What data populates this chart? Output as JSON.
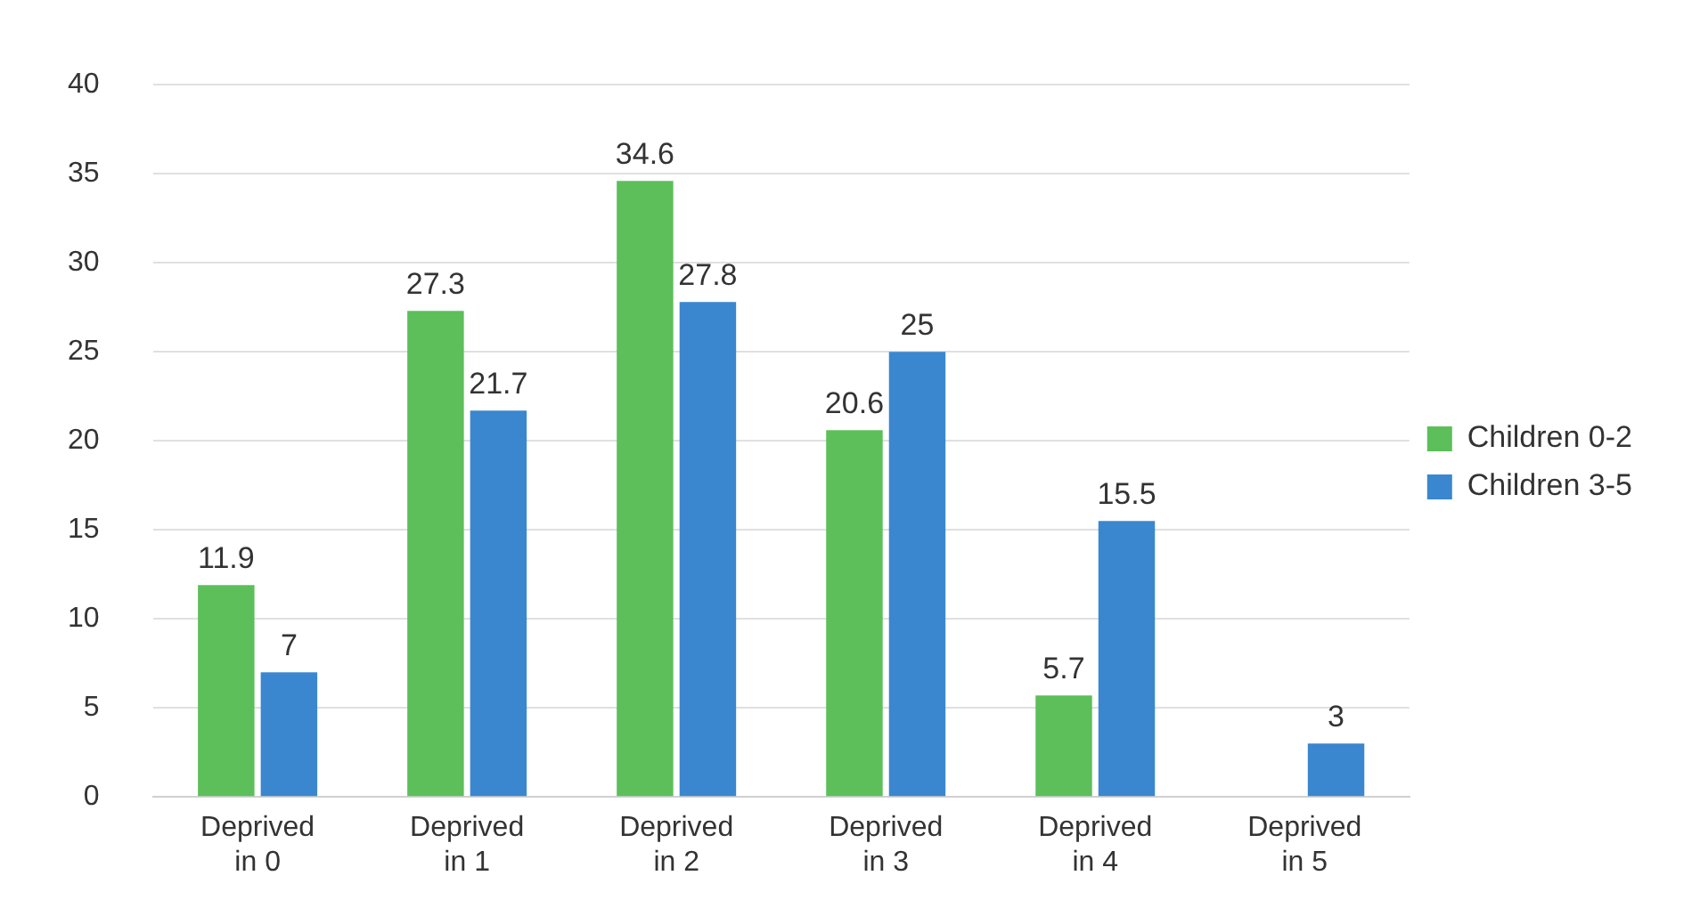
{
  "chart_data": {
    "type": "bar",
    "categories": [
      "Deprived in 0",
      "Deprived in 1",
      "Deprived in 2",
      "Deprived in 3",
      "Deprived in 4",
      "Deprived in 5"
    ],
    "series": [
      {
        "name": "Children 0-2",
        "color": "#5cbf5a",
        "values": [
          11.9,
          27.3,
          34.6,
          20.6,
          5.7,
          null
        ]
      },
      {
        "name": "Children 3-5",
        "color": "#3a87d0",
        "values": [
          7,
          21.7,
          27.8,
          25,
          15.5,
          3
        ]
      }
    ],
    "ylim": [
      0,
      40
    ],
    "yticks": [
      0,
      5,
      10,
      15,
      20,
      25,
      30,
      35,
      40
    ],
    "grid": "y",
    "legend": "right",
    "data_labels": true
  }
}
